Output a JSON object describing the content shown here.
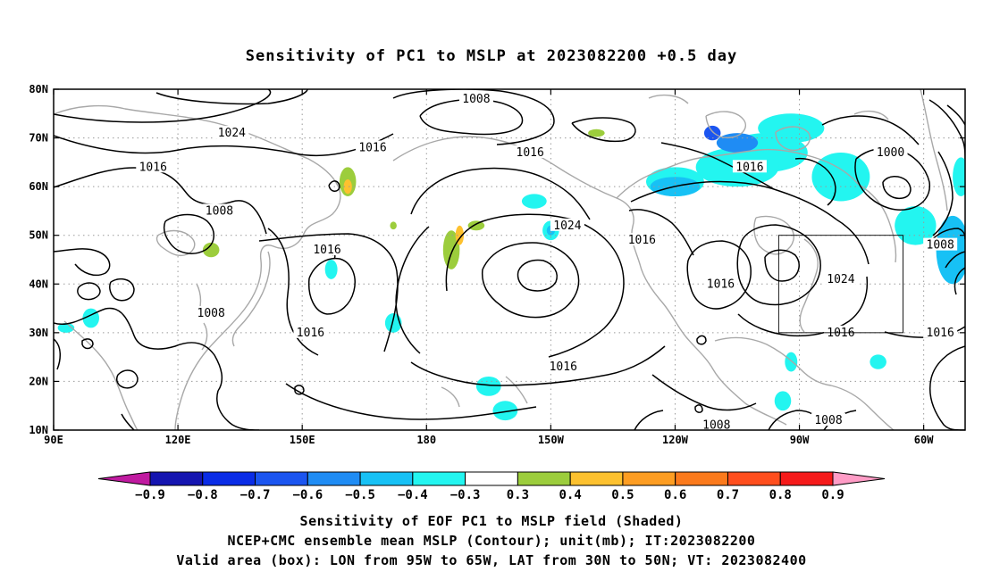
{
  "title": "Sensitivity of PC1 to MSLP at 2023082200 +0.5 day",
  "map": {
    "lon_range": [
      90,
      310
    ],
    "lat_range": [
      10,
      80
    ],
    "x_ticks": [
      {
        "lon": 90,
        "label": "90E"
      },
      {
        "lon": 120,
        "label": "120E"
      },
      {
        "lon": 150,
        "label": "150E"
      },
      {
        "lon": 180,
        "label": "180"
      },
      {
        "lon": 210,
        "label": "150W"
      },
      {
        "lon": 240,
        "label": "120W"
      },
      {
        "lon": 270,
        "label": "90W"
      },
      {
        "lon": 300,
        "label": "60W"
      }
    ],
    "y_ticks": [
      {
        "lat": 80,
        "label": "80N"
      },
      {
        "lat": 70,
        "label": "70N"
      },
      {
        "lat": 60,
        "label": "60N"
      },
      {
        "lat": 50,
        "label": "50N"
      },
      {
        "lat": 40,
        "label": "40N"
      },
      {
        "lat": 30,
        "label": "30N"
      },
      {
        "lat": 20,
        "label": "20N"
      },
      {
        "lat": 10,
        "label": "10N"
      }
    ],
    "grid": "dotted",
    "valid_box": {
      "lon": [
        265,
        295
      ],
      "lat": [
        30,
        50
      ]
    },
    "contour_labels": [
      {
        "text": "1008",
        "lon": 192,
        "lat": 78
      },
      {
        "text": "1024",
        "lon": 133,
        "lat": 71
      },
      {
        "text": "1016",
        "lon": 114,
        "lat": 64
      },
      {
        "text": "1016",
        "lon": 167,
        "lat": 68
      },
      {
        "text": "1016",
        "lon": 205,
        "lat": 67
      },
      {
        "text": "1016",
        "lon": 258,
        "lat": 64
      },
      {
        "text": "1000",
        "lon": 292,
        "lat": 67
      },
      {
        "text": "1008",
        "lon": 130,
        "lat": 55
      },
      {
        "text": "1024",
        "lon": 214,
        "lat": 52
      },
      {
        "text": "1016",
        "lon": 232,
        "lat": 49
      },
      {
        "text": "1008",
        "lon": 304,
        "lat": 48
      },
      {
        "text": "1016",
        "lon": 156,
        "lat": 47
      },
      {
        "text": "1024",
        "lon": 280,
        "lat": 41
      },
      {
        "text": "1016",
        "lon": 251,
        "lat": 40
      },
      {
        "text": "1008",
        "lon": 128,
        "lat": 34
      },
      {
        "text": "1016",
        "lon": 152,
        "lat": 30
      },
      {
        "text": "1016",
        "lon": 280,
        "lat": 30
      },
      {
        "text": "1016",
        "lon": 304,
        "lat": 30
      },
      {
        "text": "1016",
        "lon": 213,
        "lat": 23
      },
      {
        "text": "1008",
        "lon": 250,
        "lat": 11
      },
      {
        "text": "1008",
        "lon": 277,
        "lat": 12
      }
    ],
    "shaded_regions": [
      {
        "lon": 262,
        "lat": 67,
        "rx": 10,
        "ry": 4,
        "value": -0.4
      },
      {
        "lon": 255,
        "lat": 64,
        "rx": 10,
        "ry": 4,
        "value": -0.4
      },
      {
        "lon": 240,
        "lat": 61,
        "rx": 7,
        "ry": 3,
        "value": -0.4
      },
      {
        "lon": 268,
        "lat": 72,
        "rx": 8,
        "ry": 3,
        "value": -0.4
      },
      {
        "lon": 280,
        "lat": 62,
        "rx": 7,
        "ry": 5,
        "value": -0.4
      },
      {
        "lon": 298,
        "lat": 52,
        "rx": 5,
        "ry": 4,
        "value": -0.4
      },
      {
        "lon": 307,
        "lat": 47,
        "rx": 4,
        "ry": 7,
        "value": -0.5
      },
      {
        "lon": 309,
        "lat": 62,
        "rx": 2,
        "ry": 4,
        "value": -0.4
      },
      {
        "lon": 240,
        "lat": 60,
        "rx": 6,
        "ry": 2,
        "value": -0.5
      },
      {
        "lon": 255,
        "lat": 69,
        "rx": 5,
        "ry": 2,
        "value": -0.6
      },
      {
        "lon": 249,
        "lat": 71,
        "rx": 2,
        "ry": 1.5,
        "value": -0.7
      },
      {
        "lon": 210,
        "lat": 51,
        "rx": 2,
        "ry": 2,
        "value": -0.4
      },
      {
        "lon": 210,
        "lat": 51,
        "rx": 1,
        "ry": 1,
        "value": -0.5
      },
      {
        "lon": 206,
        "lat": 57,
        "rx": 3,
        "ry": 1.5,
        "value": -0.4
      },
      {
        "lon": 157,
        "lat": 43,
        "rx": 1.5,
        "ry": 2,
        "value": -0.4
      },
      {
        "lon": 172,
        "lat": 32,
        "rx": 2,
        "ry": 2,
        "value": -0.4
      },
      {
        "lon": 195,
        "lat": 19,
        "rx": 3,
        "ry": 2,
        "value": -0.4
      },
      {
        "lon": 199,
        "lat": 14,
        "rx": 3,
        "ry": 2,
        "value": -0.4
      },
      {
        "lon": 99,
        "lat": 33,
        "rx": 2,
        "ry": 2,
        "value": -0.4
      },
      {
        "lon": 93,
        "lat": 31,
        "rx": 2,
        "ry": 1,
        "value": -0.4
      },
      {
        "lon": 266,
        "lat": 16,
        "rx": 2,
        "ry": 2,
        "value": -0.4
      },
      {
        "lon": 268,
        "lat": 24,
        "rx": 1.5,
        "ry": 2,
        "value": -0.4
      },
      {
        "lon": 289,
        "lat": 24,
        "rx": 2,
        "ry": 1.5,
        "value": -0.4
      },
      {
        "lon": 161,
        "lat": 61,
        "rx": 2,
        "ry": 3,
        "value": 0.3
      },
      {
        "lon": 161,
        "lat": 60,
        "rx": 1,
        "ry": 1.5,
        "value": 0.4
      },
      {
        "lon": 186,
        "lat": 47,
        "rx": 2,
        "ry": 4,
        "value": 0.3
      },
      {
        "lon": 188,
        "lat": 50,
        "rx": 1,
        "ry": 2,
        "value": 0.4
      },
      {
        "lon": 192,
        "lat": 52,
        "rx": 2,
        "ry": 1,
        "value": 0.3
      },
      {
        "lon": 128,
        "lat": 47,
        "rx": 2,
        "ry": 1.5,
        "value": 0.3
      },
      {
        "lon": 221,
        "lat": 71,
        "rx": 2,
        "ry": 0.8,
        "value": 0.3
      },
      {
        "lon": 172,
        "lat": 52,
        "rx": 0.8,
        "ry": 0.8,
        "value": 0.3
      }
    ]
  },
  "colorbar": {
    "labels": [
      "-0.9",
      "-0.8",
      "-0.7",
      "-0.6",
      "-0.5",
      "-0.4",
      "-0.3",
      "0.3",
      "0.4",
      "0.5",
      "0.6",
      "0.7",
      "0.8",
      "0.9"
    ],
    "colors": [
      "#c01aa0",
      "#1515b0",
      "#0a2ce6",
      "#1b55f0",
      "#1f8cf4",
      "#17c1f5",
      "#23f5f0",
      "#ffffff",
      "#9ccd3c",
      "#fdc12f",
      "#fd9d22",
      "#fb7a1c",
      "#ff4e1d",
      "#f51a1a",
      "#ff9cc6"
    ]
  },
  "captions": [
    "Sensitivity of EOF PC1 to MSLP field (Shaded)",
    "NCEP+CMC ensemble mean MSLP (Contour); unit(mb); IT:2023082200",
    "Valid area (box): LON from 95W to 65W, LAT from 30N to 50N; VT: 2023082400"
  ]
}
